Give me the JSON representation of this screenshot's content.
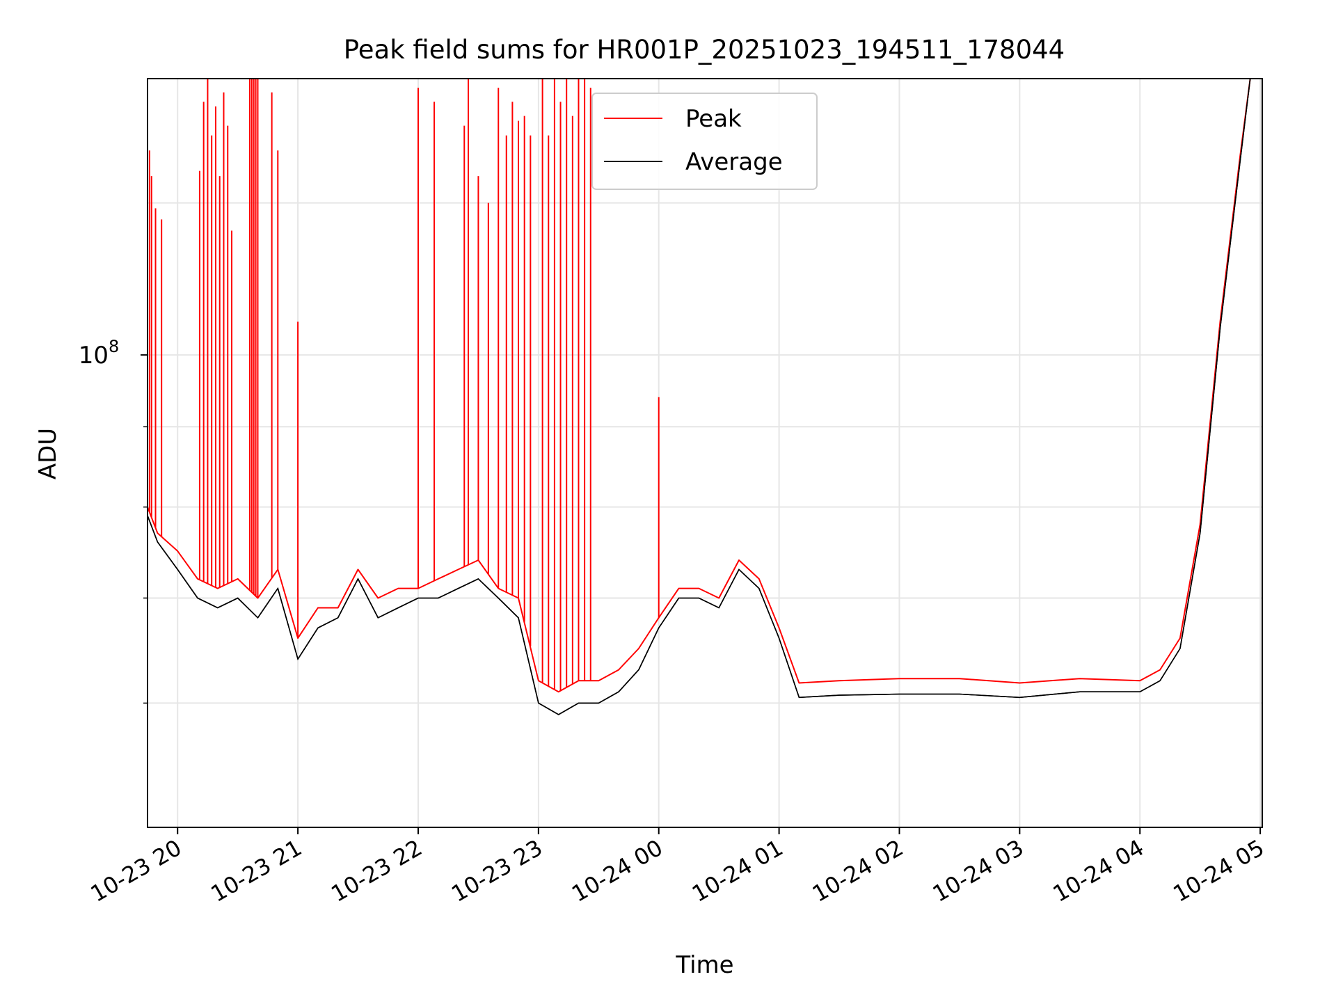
{
  "chart_data": {
    "type": "line",
    "title": "Peak field sums for HR001P_20251023_194511_178044",
    "xlabel": "Time",
    "ylabel": "ADU",
    "y_scale": "log",
    "grid": true,
    "legend_position": "top-center",
    "xlim": [
      "2025-10-23 19:45",
      "2025-10-24 05:01"
    ],
    "ylim": [
      50000000.0,
      150000000.0
    ],
    "x_ticks": [
      {
        "value": "2025-10-23 20:00",
        "label": "10-23 20"
      },
      {
        "value": "2025-10-23 21:00",
        "label": "10-23 21"
      },
      {
        "value": "2025-10-23 22:00",
        "label": "10-23 22"
      },
      {
        "value": "2025-10-23 23:00",
        "label": "10-23 23"
      },
      {
        "value": "2025-10-24 00:00",
        "label": "10-24 00"
      },
      {
        "value": "2025-10-24 01:00",
        "label": "10-24 01"
      },
      {
        "value": "2025-10-24 02:00",
        "label": "10-24 02"
      },
      {
        "value": "2025-10-24 03:00",
        "label": "10-24 03"
      },
      {
        "value": "2025-10-24 04:00",
        "label": "10-24 04"
      },
      {
        "value": "2025-10-24 05:00",
        "label": "10-24 05"
      }
    ],
    "y_major_ticks": [
      {
        "value": 100000000.0,
        "label_base": "10",
        "label_exp": "8"
      }
    ],
    "y_minor_ticks": [
      60000000.0,
      70000000.0,
      80000000.0,
      90000000.0
    ],
    "x": [
      "2025-10-23 19:45",
      "2025-10-23 19:50",
      "2025-10-23 20:00",
      "2025-10-23 20:10",
      "2025-10-23 20:20",
      "2025-10-23 20:30",
      "2025-10-23 20:40",
      "2025-10-23 20:50",
      "2025-10-23 21:00",
      "2025-10-23 21:10",
      "2025-10-23 21:20",
      "2025-10-23 21:30",
      "2025-10-23 21:40",
      "2025-10-23 21:50",
      "2025-10-23 22:00",
      "2025-10-23 22:10",
      "2025-10-23 22:20",
      "2025-10-23 22:30",
      "2025-10-23 22:40",
      "2025-10-23 22:50",
      "2025-10-23 23:00",
      "2025-10-23 23:10",
      "2025-10-23 23:20",
      "2025-10-23 23:30",
      "2025-10-23 23:40",
      "2025-10-23 23:50",
      "2025-10-24 00:00",
      "2025-10-24 00:10",
      "2025-10-24 00:20",
      "2025-10-24 00:30",
      "2025-10-24 00:40",
      "2025-10-24 00:50",
      "2025-10-24 01:00",
      "2025-10-24 01:10",
      "2025-10-24 01:30",
      "2025-10-24 02:00",
      "2025-10-24 02:30",
      "2025-10-24 03:00",
      "2025-10-24 03:30",
      "2025-10-24 04:00",
      "2025-10-24 04:10",
      "2025-10-24 04:20",
      "2025-10-24 04:30",
      "2025-10-24 04:40",
      "2025-10-24 04:50",
      "2025-10-24 04:55"
    ],
    "series": [
      {
        "name": "Peak",
        "color": "#ff0000",
        "values": [
          80000000.0,
          77000000.0,
          75000000.0,
          72000000.0,
          71000000.0,
          72000000.0,
          70000000.0,
          73000000.0,
          66000000.0,
          69000000.0,
          69000000.0,
          73000000.0,
          70000000.0,
          71000000.0,
          71000000.0,
          72000000.0,
          73000000.0,
          74000000.0,
          71000000.0,
          70000000.0,
          62000000.0,
          61000000.0,
          62000000.0,
          62000000.0,
          63000000.0,
          65000000.0,
          68000000.0,
          71000000.0,
          71000000.0,
          70000000.0,
          74000000.0,
          72000000.0,
          67000000.0,
          61800000.0,
          62000000.0,
          62200000.0,
          62200000.0,
          61800000.0,
          62200000.0,
          62000000.0,
          63000000.0,
          66000000.0,
          78000000.0,
          105000000.0,
          134000000.0,
          150000000.0
        ]
      },
      {
        "name": "Average",
        "color": "#000000",
        "values": [
          79000000.0,
          76000000.0,
          73000000.0,
          70000000.0,
          69000000.0,
          70000000.0,
          68000000.0,
          71000000.0,
          64000000.0,
          67000000.0,
          68000000.0,
          72000000.0,
          68000000.0,
          69000000.0,
          70000000.0,
          70000000.0,
          71000000.0,
          72000000.0,
          70000000.0,
          68000000.0,
          60000000.0,
          59000000.0,
          60000000.0,
          60000000.0,
          61000000.0,
          63000000.0,
          67000000.0,
          70000000.0,
          70000000.0,
          69000000.0,
          73000000.0,
          71000000.0,
          66000000.0,
          60500000.0,
          60700000.0,
          60800000.0,
          60800000.0,
          60500000.0,
          61000000.0,
          61000000.0,
          62000000.0,
          65000000.0,
          77000000.0,
          104000000.0,
          133000000.0,
          150000000.0
        ]
      }
    ],
    "peak_spikes": [
      {
        "x": "2025-10-23 19:46",
        "value": 135000000.0
      },
      {
        "x": "2025-10-23 19:47",
        "value": 130000000.0
      },
      {
        "x": "2025-10-23 19:49",
        "value": 124000000.0
      },
      {
        "x": "2025-10-23 19:52",
        "value": 122000000.0
      },
      {
        "x": "2025-10-23 20:11",
        "value": 131000000.0
      },
      {
        "x": "2025-10-23 20:13",
        "value": 145000000.0
      },
      {
        "x": "2025-10-23 20:15",
        "value": 150000000.0
      },
      {
        "x": "2025-10-23 20:17",
        "value": 138000000.0
      },
      {
        "x": "2025-10-23 20:19",
        "value": 144000000.0
      },
      {
        "x": "2025-10-23 20:21",
        "value": 130000000.0
      },
      {
        "x": "2025-10-23 20:23",
        "value": 147000000.0
      },
      {
        "x": "2025-10-23 20:25",
        "value": 140000000.0
      },
      {
        "x": "2025-10-23 20:27",
        "value": 120000000.0
      },
      {
        "x": "2025-10-23 20:36",
        "value": 150000000.0
      },
      {
        "x": "2025-10-23 20:37",
        "value": 150000000.0
      },
      {
        "x": "2025-10-23 20:38",
        "value": 150000000.0
      },
      {
        "x": "2025-10-23 20:39",
        "value": 150000000.0
      },
      {
        "x": "2025-10-23 20:40",
        "value": 150000000.0
      },
      {
        "x": "2025-10-23 20:47",
        "value": 147000000.0
      },
      {
        "x": "2025-10-23 20:50",
        "value": 135000000.0
      },
      {
        "x": "2025-10-23 21:00",
        "value": 105000000.0
      },
      {
        "x": "2025-10-23 22:00",
        "value": 148000000.0
      },
      {
        "x": "2025-10-23 22:08",
        "value": 145000000.0
      },
      {
        "x": "2025-10-23 22:23",
        "value": 140000000.0
      },
      {
        "x": "2025-10-23 22:25",
        "value": 150000000.0
      },
      {
        "x": "2025-10-23 22:30",
        "value": 130000000.0
      },
      {
        "x": "2025-10-23 22:35",
        "value": 125000000.0
      },
      {
        "x": "2025-10-23 22:40",
        "value": 148000000.0
      },
      {
        "x": "2025-10-23 22:44",
        "value": 138000000.0
      },
      {
        "x": "2025-10-23 22:47",
        "value": 145000000.0
      },
      {
        "x": "2025-10-23 22:50",
        "value": 141000000.0
      },
      {
        "x": "2025-10-23 22:53",
        "value": 142000000.0
      },
      {
        "x": "2025-10-23 22:56",
        "value": 138000000.0
      },
      {
        "x": "2025-10-23 23:02",
        "value": 150000000.0
      },
      {
        "x": "2025-10-23 23:05",
        "value": 138000000.0
      },
      {
        "x": "2025-10-23 23:08",
        "value": 150000000.0
      },
      {
        "x": "2025-10-23 23:11",
        "value": 145000000.0
      },
      {
        "x": "2025-10-23 23:14",
        "value": 150000000.0
      },
      {
        "x": "2025-10-23 23:17",
        "value": 142000000.0
      },
      {
        "x": "2025-10-23 23:20",
        "value": 150000000.0
      },
      {
        "x": "2025-10-23 23:23",
        "value": 150000000.0
      },
      {
        "x": "2025-10-23 23:26",
        "value": 148000000.0
      },
      {
        "x": "2025-10-24 00:00",
        "value": 94000000.0
      }
    ]
  }
}
